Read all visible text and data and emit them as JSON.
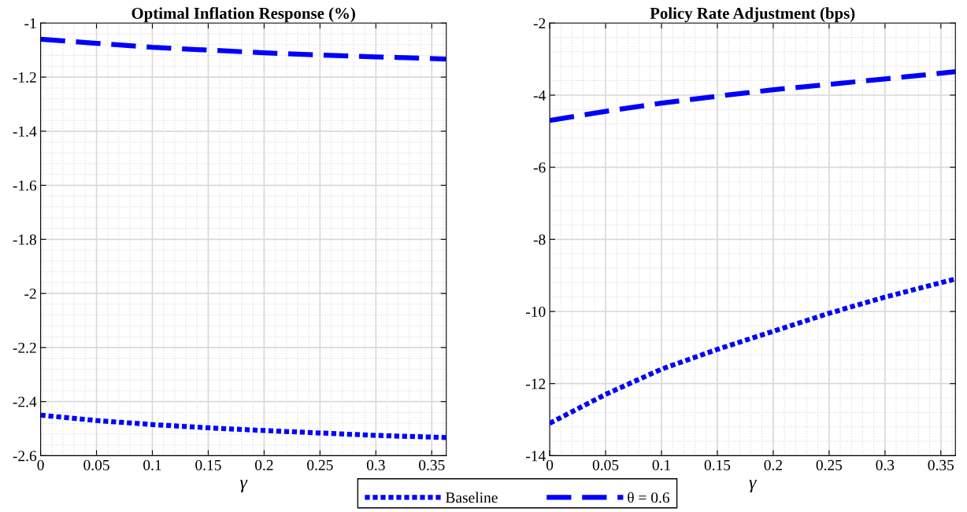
{
  "chart_data": [
    {
      "type": "line",
      "title": "Optimal Inflation Response (%)",
      "xlabel": "γ",
      "x": [
        0,
        0.05,
        0.1,
        0.15,
        0.2,
        0.25,
        0.3,
        0.363
      ],
      "series": [
        {
          "name": "Baseline",
          "color": "#0000ff",
          "line_style": "dotted",
          "values": [
            -2.45,
            -2.47,
            -2.485,
            -2.497,
            -2.507,
            -2.516,
            -2.525,
            -2.533
          ]
        },
        {
          "color": "#0000ff",
          "line_style": "dashed",
          "values": [
            -1.06,
            -1.075,
            -1.09,
            -1.1,
            -1.11,
            -1.118,
            -1.125,
            -1.133
          ]
        }
      ],
      "xlim": [
        0,
        0.363
      ],
      "xticks": [
        0,
        0.05,
        0.1,
        0.15,
        0.2,
        0.25,
        0.3,
        0.35
      ],
      "ylim": [
        -2.6,
        -1
      ],
      "yticks": [
        -2.6,
        -2.4,
        -2.2,
        -2,
        -1.8,
        -1.6,
        -1.4,
        -1.2,
        -1
      ],
      "grid": true,
      "legend": "bottom"
    },
    {
      "type": "line",
      "title": "Policy Rate Adjustment (bps)",
      "xlabel": "γ",
      "x": [
        0,
        0.05,
        0.1,
        0.15,
        0.2,
        0.25,
        0.3,
        0.363
      ],
      "series": [
        {
          "color": "#0000ff",
          "line_style": "dotted",
          "values": [
            -13.1,
            -12.3,
            -11.6,
            -11.05,
            -10.55,
            -10.05,
            -9.6,
            -9.1
          ]
        },
        {
          "name": "θ = 0.6",
          "color": "#0000ff",
          "line_style": "dashed",
          "values": [
            -4.7,
            -4.45,
            -4.22,
            -4.03,
            -3.85,
            -3.7,
            -3.55,
            -3.35
          ]
        }
      ],
      "xlim": [
        0,
        0.363
      ],
      "xticks": [
        0,
        0.05,
        0.1,
        0.15,
        0.2,
        0.25,
        0.3,
        0.35
      ],
      "ylim": [
        -14,
        -2
      ],
      "yticks": [
        -14,
        -12,
        -10,
        -8,
        -6,
        -4,
        -2
      ],
      "grid": true,
      "legend": "bottom"
    }
  ]
}
